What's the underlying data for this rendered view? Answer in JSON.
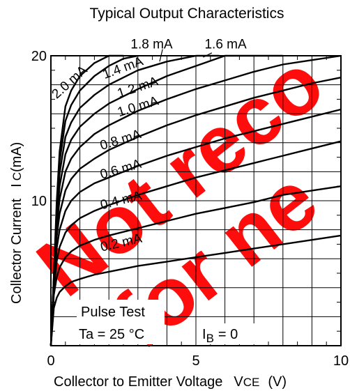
{
  "chart_data": {
    "type": "line",
    "title": "Typical Output Characteristics",
    "xlabel": "Collector to Emitter Voltage",
    "xlabel_symbol": "V",
    "xlabel_symbol_sub": "CE",
    "xlabel_unit": "(V)",
    "ylabel": "Collector Current",
    "ylabel_symbol": "I",
    "ylabel_symbol_sub": "C",
    "ylabel_unit": "(mA)",
    "xlim": [
      0,
      10
    ],
    "ylim": [
      0,
      20
    ],
    "x_ticks": [
      "0",
      "5",
      "10"
    ],
    "y_ticks": [
      "10",
      "20"
    ],
    "grid": true,
    "annotations": [
      "Pulse Test",
      "Ta = 25 °C",
      "I",
      "B",
      "= 0"
    ],
    "watermark": "Not recommended for new design",
    "series": [
      {
        "name": "0.2 mA",
        "x": [
          0,
          0.1,
          0.2,
          0.3,
          0.5,
          0.7,
          1.0,
          1.5,
          2.0,
          3.0,
          4.0,
          5.0,
          6.0,
          7.0,
          8.0,
          9.0,
          10.0
        ],
        "y": [
          0,
          2.6,
          3.3,
          3.7,
          4.1,
          4.4,
          4.6,
          4.9,
          5.1,
          5.5,
          5.8,
          6.1,
          6.4,
          6.7,
          7.0,
          7.3,
          7.6
        ]
      },
      {
        "name": "0.4 mA",
        "x": [
          0,
          0.1,
          0.2,
          0.3,
          0.5,
          0.7,
          1.0,
          1.5,
          2.0,
          3.0,
          4.0,
          5.0,
          6.0,
          7.0,
          8.0,
          9.0,
          10.0
        ],
        "y": [
          0,
          3.5,
          4.7,
          5.4,
          6.1,
          6.5,
          6.9,
          7.3,
          7.6,
          8.1,
          8.6,
          9.1,
          9.5,
          9.9,
          10.4,
          10.7,
          11.0
        ]
      },
      {
        "name": "0.6 mA",
        "x": [
          0,
          0.1,
          0.2,
          0.3,
          0.5,
          0.7,
          1.0,
          1.5,
          2.0,
          3.0,
          4.0,
          5.0,
          6.0,
          7.0,
          8.0,
          9.0,
          10.0
        ],
        "y": [
          0,
          3.9,
          5.8,
          6.8,
          7.8,
          8.3,
          8.8,
          9.3,
          9.7,
          10.4,
          11.0,
          11.6,
          12.1,
          12.6,
          13.1,
          13.6,
          14.1
        ]
      },
      {
        "name": "0.8 mA",
        "x": [
          0,
          0.1,
          0.2,
          0.3,
          0.5,
          0.7,
          1.0,
          1.5,
          2.0,
          3.0,
          4.0,
          5.0,
          6.0,
          7.0,
          8.0,
          9.0,
          10.0
        ],
        "y": [
          0,
          4.1,
          6.7,
          8.0,
          9.3,
          10.0,
          10.6,
          11.2,
          11.6,
          12.4,
          13.1,
          13.7,
          14.3,
          14.8,
          15.3,
          15.8,
          16.3
        ]
      },
      {
        "name": "1.0 mA",
        "x": [
          0,
          0.1,
          0.2,
          0.3,
          0.5,
          0.7,
          1.0,
          1.5,
          2.0,
          3.0,
          4.0,
          5.0,
          6.0,
          7.0,
          8.0,
          9.0,
          10.0
        ],
        "y": [
          0,
          4.3,
          7.5,
          9.1,
          10.7,
          11.5,
          12.2,
          12.9,
          13.5,
          14.4,
          15.2,
          15.9,
          16.5,
          17.1,
          17.6,
          18.1,
          18.5
        ]
      },
      {
        "name": "1.2 mA",
        "x": [
          0,
          0.1,
          0.2,
          0.3,
          0.5,
          0.7,
          1.0,
          1.5,
          2.0,
          3.0,
          4.0,
          5.0,
          6.0,
          7.0,
          8.0,
          9.0,
          10.0
        ],
        "y": [
          0,
          4.4,
          8.1,
          10.1,
          12.0,
          12.9,
          13.7,
          14.6,
          15.2,
          16.2,
          17.0,
          17.7,
          18.3,
          18.9,
          19.4,
          19.7,
          20.0
        ]
      },
      {
        "name": "1.4 mA",
        "x": [
          0,
          0.1,
          0.2,
          0.3,
          0.5,
          0.7,
          1.0,
          1.5,
          2.0,
          3.0,
          4.0,
          5.0,
          6.0,
          7.0,
          8.0
        ],
        "y": [
          0,
          4.5,
          8.6,
          11.0,
          13.2,
          14.2,
          15.1,
          16.0,
          16.7,
          17.7,
          18.6,
          19.3,
          20.0,
          20.0,
          20.0
        ]
      },
      {
        "name": "1.6 mA",
        "x": [
          0,
          0.1,
          0.2,
          0.3,
          0.5,
          0.7,
          1.0,
          1.5,
          2.0,
          3.0,
          4.0,
          5.0,
          5.8
        ],
        "y": [
          0,
          4.6,
          9.1,
          11.9,
          14.4,
          15.4,
          16.4,
          17.3,
          18.0,
          19.0,
          19.6,
          20.0,
          20.0
        ]
      },
      {
        "name": "1.8 mA",
        "x": [
          0,
          0.1,
          0.2,
          0.3,
          0.5,
          0.7,
          1.0,
          1.5,
          2.0,
          2.5,
          3.0
        ],
        "y": [
          0,
          4.7,
          9.5,
          12.7,
          15.5,
          16.6,
          17.6,
          18.6,
          19.3,
          19.8,
          20.0
        ]
      },
      {
        "name": "2.0 mA",
        "x": [
          0,
          0.1,
          0.2,
          0.3,
          0.5,
          0.7,
          1.0,
          1.5,
          2.0,
          2.5
        ],
        "y": [
          0,
          4.8,
          9.9,
          13.4,
          16.5,
          17.6,
          18.6,
          19.5,
          20.0,
          20.0
        ]
      }
    ]
  }
}
